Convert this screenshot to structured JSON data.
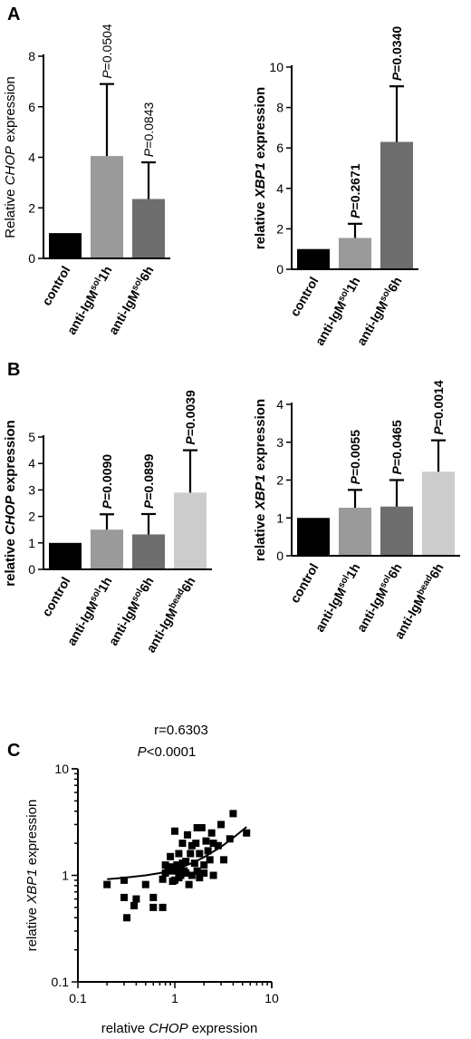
{
  "panel_labels": [
    "A",
    "B",
    "C"
  ],
  "chart_data": [
    {
      "panel": "A",
      "type": "bar",
      "ylabel_parts": [
        "Relative ",
        "CHOP",
        " expression"
      ],
      "ylim": [
        0,
        8
      ],
      "yticks": [
        "0",
        "2",
        "4",
        "6",
        "8"
      ],
      "categories": [
        {
          "pre": "control",
          "sup": "",
          "post": ""
        },
        {
          "pre": "anti-IgM",
          "sup": "sol",
          "post": "1h"
        },
        {
          "pre": "anti-IgM",
          "sup": "sol",
          "post": "6h"
        }
      ],
      "values": [
        1.0,
        4.05,
        2.35
      ],
      "errors": [
        0,
        2.85,
        1.45
      ],
      "colors": [
        "#000000",
        "#9a9a9a",
        "#6e6e6e"
      ],
      "pvalues": [
        "",
        "0.0504",
        "0.0843"
      ]
    },
    {
      "panel": "A",
      "type": "bar",
      "ylabel_parts": [
        "relative ",
        "XBP1",
        " expression"
      ],
      "ylim": [
        0,
        10
      ],
      "yticks": [
        "0",
        "2",
        "4",
        "6",
        "8",
        "10"
      ],
      "categories": [
        {
          "pre": "control",
          "sup": "",
          "post": ""
        },
        {
          "pre": "anti-IgM",
          "sup": "sol",
          "post": "1h"
        },
        {
          "pre": "anti-IgM",
          "sup": "sol",
          "post": "6h"
        }
      ],
      "values": [
        1.0,
        1.55,
        6.3
      ],
      "errors": [
        0,
        0.7,
        2.75
      ],
      "colors": [
        "#000000",
        "#9a9a9a",
        "#6e6e6e"
      ],
      "pvalues": [
        "",
        "0.2671",
        "0.0340"
      ]
    },
    {
      "panel": "B",
      "type": "bar",
      "ylabel_parts": [
        "relative ",
        "CHOP",
        " expression"
      ],
      "ylim": [
        0,
        5
      ],
      "yticks": [
        "0",
        "1",
        "2",
        "3",
        "4",
        "5"
      ],
      "categories": [
        {
          "pre": "control",
          "sup": "",
          "post": ""
        },
        {
          "pre": "anti-IgM",
          "sup": "sol",
          "post": "1h"
        },
        {
          "pre": "anti-IgM",
          "sup": "sol",
          "post": "6h"
        },
        {
          "pre": "anti-IgM",
          "sup": "bead",
          "post": "6h"
        }
      ],
      "values": [
        1.0,
        1.5,
        1.32,
        2.9
      ],
      "errors": [
        0,
        0.58,
        0.77,
        1.6
      ],
      "colors": [
        "#000000",
        "#9a9a9a",
        "#6e6e6e",
        "#cccccc"
      ],
      "pvalues": [
        "",
        "0.0090",
        "0.0899",
        "0.0039"
      ]
    },
    {
      "panel": "B",
      "type": "bar",
      "ylabel_parts": [
        "relative ",
        "XBP1",
        " expression"
      ],
      "ylim": [
        0,
        4
      ],
      "yticks": [
        "0",
        "1",
        "2",
        "3",
        "4"
      ],
      "categories": [
        {
          "pre": "control",
          "sup": "",
          "post": ""
        },
        {
          "pre": "anti-IgM",
          "sup": "sol",
          "post": "1h"
        },
        {
          "pre": "anti-IgM",
          "sup": "sol",
          "post": "6h"
        },
        {
          "pre": "anti-IgM",
          "sup": "bead",
          "post": "6h"
        }
      ],
      "values": [
        1.0,
        1.27,
        1.3,
        2.22
      ],
      "errors": [
        0,
        0.47,
        0.7,
        0.83
      ],
      "colors": [
        "#000000",
        "#9a9a9a",
        "#6e6e6e",
        "#cccccc"
      ],
      "pvalues": [
        "",
        "0.0055",
        "0.0465",
        "0.0014"
      ]
    },
    {
      "panel": "C",
      "type": "scatter",
      "xscale": "log",
      "yscale": "log",
      "xlim": [
        0.1,
        10
      ],
      "ylim": [
        0.1,
        10
      ],
      "xticks": [
        "0.1",
        "1",
        "10"
      ],
      "yticks": [
        "0.1",
        "1",
        "10"
      ],
      "xlabel_parts": [
        "relative ",
        "CHOP",
        " expression"
      ],
      "ylabel_parts": [
        "relative ",
        "XBP1",
        " expression"
      ],
      "r_text": "r=0.6303",
      "p_text": "<0.0001",
      "x": [
        0.2,
        0.3,
        0.3,
        0.32,
        0.38,
        0.4,
        0.5,
        0.6,
        0.6,
        0.75,
        0.75,
        0.8,
        0.8,
        0.85,
        0.9,
        0.9,
        0.95,
        1.0,
        1.0,
        1.0,
        1.05,
        1.1,
        1.1,
        1.1,
        1.15,
        1.2,
        1.2,
        1.25,
        1.3,
        1.3,
        1.35,
        1.4,
        1.45,
        1.5,
        1.5,
        1.6,
        1.65,
        1.7,
        1.7,
        1.8,
        1.8,
        1.9,
        2.0,
        2.0,
        2.1,
        2.2,
        2.3,
        2.4,
        2.5,
        2.5,
        2.8,
        3.0,
        3.2,
        3.7,
        4.0,
        5.5
      ],
      "y": [
        0.82,
        0.9,
        0.62,
        0.4,
        0.52,
        0.6,
        0.82,
        0.5,
        0.62,
        0.5,
        0.92,
        1.05,
        1.25,
        1.1,
        1.2,
        1.5,
        0.88,
        0.9,
        1.1,
        2.6,
        1.25,
        0.95,
        1.15,
        1.6,
        1.0,
        1.3,
        2.0,
        1.1,
        1.05,
        1.35,
        2.4,
        0.82,
        1.6,
        1.0,
        1.9,
        1.3,
        2.0,
        1.1,
        2.8,
        0.95,
        1.6,
        2.8,
        1.05,
        1.25,
        2.1,
        1.7,
        1.4,
        2.5,
        1.0,
        2.0,
        1.9,
        3.0,
        1.4,
        2.2,
        3.8,
        2.5
      ],
      "fit_x": [
        0.2,
        0.3,
        0.5,
        0.7,
        1.0,
        1.5,
        2.0,
        3.0,
        4.0,
        5.5
      ],
      "fit_y": [
        0.92,
        0.95,
        1.0,
        1.05,
        1.13,
        1.3,
        1.48,
        1.85,
        2.25,
        2.85
      ]
    }
  ]
}
